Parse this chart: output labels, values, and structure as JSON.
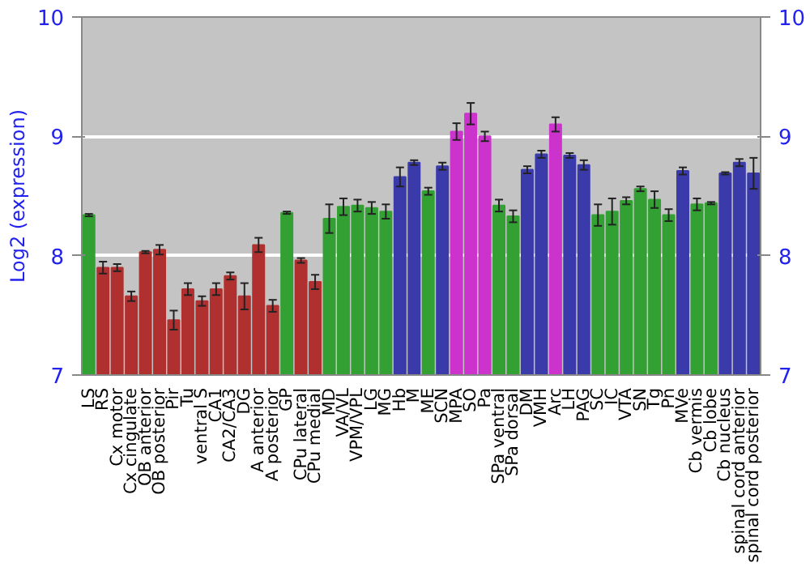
{
  "chart_data": {
    "type": "bar",
    "ylabel": "Log2 (expression)",
    "categories": [
      "LS",
      "RS",
      "Cx motor",
      "Cx cingulate",
      "OB anterior",
      "OB posterior",
      "Pir",
      "Tu",
      "ventral S",
      "CA1",
      "CA2/CA3",
      "DG",
      "A anterior",
      "A posterior",
      "GP",
      "CPu lateral",
      "CPu medial",
      "MD",
      "VA/VL",
      "VPM/VPL",
      "LG",
      "MG",
      "Hb",
      "M",
      "ME",
      "SCN",
      "MPA",
      "SO",
      "Pa",
      "SPa ventral",
      "SPa dorsal",
      "DM",
      "VMH",
      "Arc",
      "LH",
      "PAG",
      "SC",
      "IC",
      "VTA",
      "SN",
      "Tg",
      "Pn",
      "MVe",
      "Cb vermis",
      "Cb lobe",
      "Cb nucleus",
      "spinal cord anterior",
      "spinal cord posterior"
    ],
    "values": [
      8.34,
      7.9,
      7.9,
      7.66,
      8.03,
      8.05,
      7.46,
      7.72,
      7.62,
      7.72,
      7.83,
      7.66,
      8.09,
      7.58,
      8.36,
      7.96,
      7.78,
      8.31,
      8.41,
      8.42,
      8.4,
      8.37,
      8.66,
      8.78,
      8.54,
      8.75,
      9.04,
      9.19,
      9.0,
      8.42,
      8.33,
      8.72,
      8.85,
      9.1,
      8.84,
      8.76,
      8.34,
      8.37,
      8.46,
      8.56,
      8.47,
      8.34,
      8.71,
      8.43,
      8.44,
      8.69,
      8.78,
      8.69
    ],
    "errors": [
      0.01,
      0.05,
      0.03,
      0.04,
      0.01,
      0.04,
      0.08,
      0.05,
      0.04,
      0.05,
      0.03,
      0.11,
      0.06,
      0.05,
      0.01,
      0.02,
      0.06,
      0.12,
      0.07,
      0.05,
      0.05,
      0.06,
      0.08,
      0.02,
      0.03,
      0.03,
      0.07,
      0.09,
      0.04,
      0.05,
      0.05,
      0.03,
      0.03,
      0.06,
      0.02,
      0.04,
      0.09,
      0.11,
      0.03,
      0.02,
      0.07,
      0.05,
      0.03,
      0.05,
      0.01,
      0.01,
      0.03,
      0.13
    ],
    "colors": [
      "#33a033",
      "#b03030",
      "#b03030",
      "#b03030",
      "#b03030",
      "#b03030",
      "#b03030",
      "#b03030",
      "#b03030",
      "#b03030",
      "#b03030",
      "#b03030",
      "#b03030",
      "#b03030",
      "#33a033",
      "#b03030",
      "#b03030",
      "#33a033",
      "#33a033",
      "#33a033",
      "#33a033",
      "#33a033",
      "#3a3aaa",
      "#3a3aaa",
      "#33a033",
      "#3a3aaa",
      "#cc33cc",
      "#cc33cc",
      "#cc33cc",
      "#33a033",
      "#33a033",
      "#3a3aaa",
      "#3a3aaa",
      "#cc33cc",
      "#3a3aaa",
      "#3a3aaa",
      "#33a033",
      "#33a033",
      "#33a033",
      "#33a033",
      "#33a033",
      "#33a033",
      "#3a3aaa",
      "#33a033",
      "#33a033",
      "#3a3aaa",
      "#3a3aaa",
      "#3a3aaa"
    ],
    "ylim": [
      7,
      10
    ],
    "yticks": [
      7,
      8,
      9,
      10
    ],
    "y2lim": [
      7,
      10
    ],
    "y2ticks": [
      7,
      8,
      9,
      10
    ],
    "grid": "y"
  }
}
